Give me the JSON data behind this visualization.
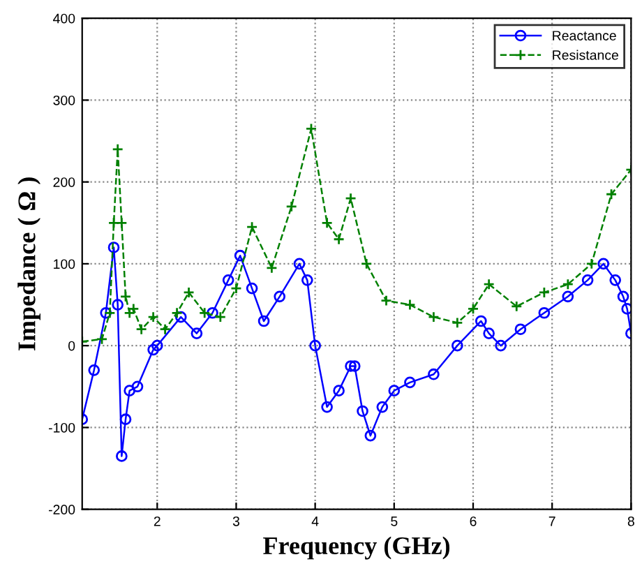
{
  "chart_data": {
    "type": "line",
    "xlabel": "Frequency (GHz)",
    "ylabel": "Impedance ( Ω )",
    "xlim": [
      1.05,
      8
    ],
    "xticks": [
      2,
      3,
      4,
      5,
      6,
      7,
      8
    ],
    "ylim": [
      -200,
      400
    ],
    "yticks": [
      -200,
      -100,
      0,
      100,
      200,
      300,
      400
    ],
    "grid": true,
    "legend": "top right",
    "series": [
      {
        "name": "Reactance",
        "color": "#0000ff",
        "marker": "circle",
        "line_style": "solid",
        "x": [
          1.05,
          1.2,
          1.35,
          1.45,
          1.5,
          1.55,
          1.6,
          1.65,
          1.75,
          1.95,
          2.0,
          2.3,
          2.5,
          2.7,
          2.9,
          3.05,
          3.2,
          3.35,
          3.55,
          3.8,
          3.9,
          4.0,
          4.15,
          4.3,
          4.45,
          4.5,
          4.6,
          4.7,
          4.85,
          5.0,
          5.2,
          5.5,
          5.8,
          6.1,
          6.2,
          6.35,
          6.6,
          6.9,
          7.2,
          7.45,
          7.65,
          7.8,
          7.9,
          7.95,
          8.0
        ],
        "values": [
          -90,
          -30,
          40,
          120,
          50,
          -135,
          -90,
          -55,
          -50,
          -5,
          0,
          35,
          15,
          40,
          80,
          110,
          70,
          30,
          60,
          100,
          80,
          0,
          -75,
          -55,
          -25,
          -25,
          -80,
          -110,
          -75,
          -55,
          -45,
          -35,
          0,
          30,
          15,
          0,
          20,
          40,
          60,
          80,
          100,
          80,
          60,
          45,
          15
        ]
      },
      {
        "name": "Resistance",
        "color": "#008000",
        "marker": "cross",
        "line_style": "dashed",
        "x": [
          1.05,
          1.3,
          1.4,
          1.45,
          1.5,
          1.55,
          1.6,
          1.65,
          1.7,
          1.8,
          1.95,
          2.1,
          2.25,
          2.4,
          2.6,
          2.8,
          3.0,
          3.2,
          3.45,
          3.7,
          3.95,
          4.15,
          4.3,
          4.45,
          4.65,
          4.9,
          5.2,
          5.5,
          5.8,
          6.0,
          6.2,
          6.55,
          6.9,
          7.2,
          7.5,
          7.75,
          8.0
        ],
        "values": [
          5,
          8,
          40,
          150,
          240,
          150,
          60,
          40,
          45,
          20,
          35,
          20,
          40,
          65,
          40,
          35,
          70,
          145,
          95,
          170,
          265,
          150,
          130,
          180,
          100,
          55,
          50,
          35,
          28,
          45,
          75,
          48,
          65,
          75,
          100,
          185,
          215
        ]
      }
    ]
  }
}
